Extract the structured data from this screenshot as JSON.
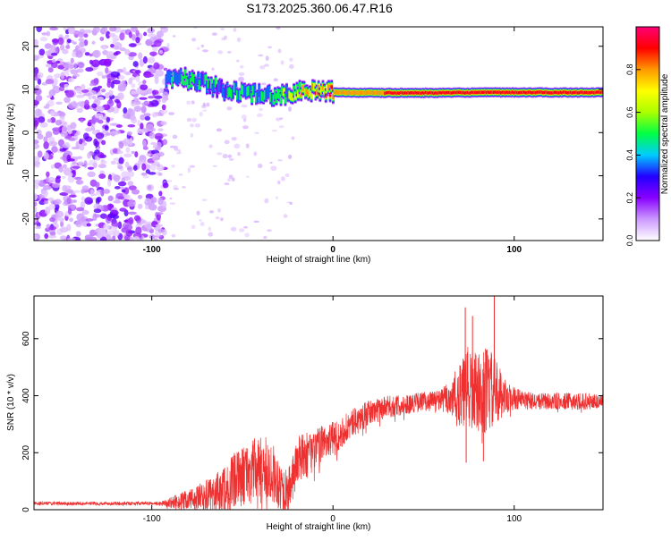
{
  "title": "S173.2025.360.06.47.R16",
  "chart_data": [
    {
      "type": "heatmap",
      "name": "spectrogram",
      "xlabel": "Height of straight line (km)",
      "ylabel": "Frequency (Hz)",
      "xlim": [
        -165,
        149
      ],
      "ylim": [
        -25,
        24.5
      ],
      "xticks": [
        -100,
        0,
        100
      ],
      "yticks": [
        -20,
        -10,
        0,
        10,
        20
      ],
      "colorbar": {
        "label": "Normalized spectral amplitude",
        "range": [
          0.0,
          1.0
        ],
        "ticks": [
          0.0,
          0.2,
          0.4,
          0.6,
          0.8
        ],
        "tick_labels": [
          "0.0",
          "0.2",
          "0.4",
          "0.6",
          "0.8"
        ],
        "colors": [
          "#ffffff",
          "#cc99ff",
          "#8800ff",
          "#2200ff",
          "#00ccff",
          "#00ff44",
          "#aaff00",
          "#ffff00",
          "#ff9900",
          "#ff0000",
          "#ff0077"
        ]
      },
      "noise_region": {
        "x_from": -165,
        "x_to": -92,
        "amplitude": 0.25
      },
      "signal_track": [
        {
          "x": -92,
          "y": 12.5,
          "amplitude": 0.3
        },
        {
          "x": -85,
          "y": 13.0,
          "amplitude": 0.35
        },
        {
          "x": -78,
          "y": 12.0,
          "amplitude": 0.3
        },
        {
          "x": -70,
          "y": 11.5,
          "amplitude": 0.3
        },
        {
          "x": -62,
          "y": 10.0,
          "amplitude": 0.3
        },
        {
          "x": -55,
          "y": 9.5,
          "amplitude": 0.35
        },
        {
          "x": -45,
          "y": 9.0,
          "amplitude": 0.35
        },
        {
          "x": -35,
          "y": 8.5,
          "amplitude": 0.35
        },
        {
          "x": -25,
          "y": 9.0,
          "amplitude": 0.45
        },
        {
          "x": -15,
          "y": 9.8,
          "amplitude": 0.6
        },
        {
          "x": -5,
          "y": 9.6,
          "amplitude": 0.7
        },
        {
          "x": 5,
          "y": 9.3,
          "amplitude": 0.8
        },
        {
          "x": 20,
          "y": 9.2,
          "amplitude": 0.85
        },
        {
          "x": 40,
          "y": 9.2,
          "amplitude": 0.9
        },
        {
          "x": 60,
          "y": 9.2,
          "amplitude": 0.9
        },
        {
          "x": 80,
          "y": 9.3,
          "amplitude": 0.9
        },
        {
          "x": 100,
          "y": 9.3,
          "amplitude": 0.92
        },
        {
          "x": 120,
          "y": 9.3,
          "amplitude": 0.95
        },
        {
          "x": 149,
          "y": 9.3,
          "amplitude": 0.95
        }
      ]
    },
    {
      "type": "line",
      "name": "snr",
      "xlabel": "Height of straight line (km)",
      "ylabel": "SNR (10 * v/v)",
      "xlim": [
        -165,
        149
      ],
      "ylim": [
        0,
        750
      ],
      "xticks": [
        -100,
        0,
        100
      ],
      "yticks": [
        0,
        200,
        400,
        600
      ],
      "series": [
        {
          "name": "SNR",
          "color": "#ee3030",
          "x": [
            -165,
            -150,
            -130,
            -110,
            -95,
            -85,
            -75,
            -65,
            -55,
            -45,
            -35,
            -25,
            -20,
            -15,
            -10,
            -5,
            0,
            10,
            20,
            30,
            40,
            50,
            60,
            70,
            75,
            80,
            85,
            90,
            95,
            100,
            110,
            120,
            130,
            140,
            149
          ],
          "values": [
            22,
            22,
            22,
            22,
            22,
            28,
            40,
            55,
            95,
            140,
            145,
            50,
            170,
            190,
            210,
            240,
            250,
            300,
            340,
            360,
            370,
            380,
            385,
            400,
            420,
            410,
            420,
            410,
            400,
            390,
            380,
            380,
            380,
            380,
            380
          ],
          "noise": [
            6,
            6,
            6,
            6,
            6,
            30,
            45,
            70,
            100,
            110,
            110,
            80,
            90,
            80,
            70,
            60,
            60,
            50,
            45,
            40,
            35,
            35,
            40,
            110,
            160,
            130,
            160,
            120,
            60,
            40,
            30,
            30,
            30,
            30,
            30
          ],
          "peaks": [
            {
              "x": 73,
              "value": 710
            },
            {
              "x": 77,
              "value": 680
            },
            {
              "x": 89,
              "value": 750
            },
            {
              "x": 83,
              "value": 170
            },
            {
              "x": 73.5,
              "value": 165
            }
          ]
        }
      ]
    }
  ]
}
